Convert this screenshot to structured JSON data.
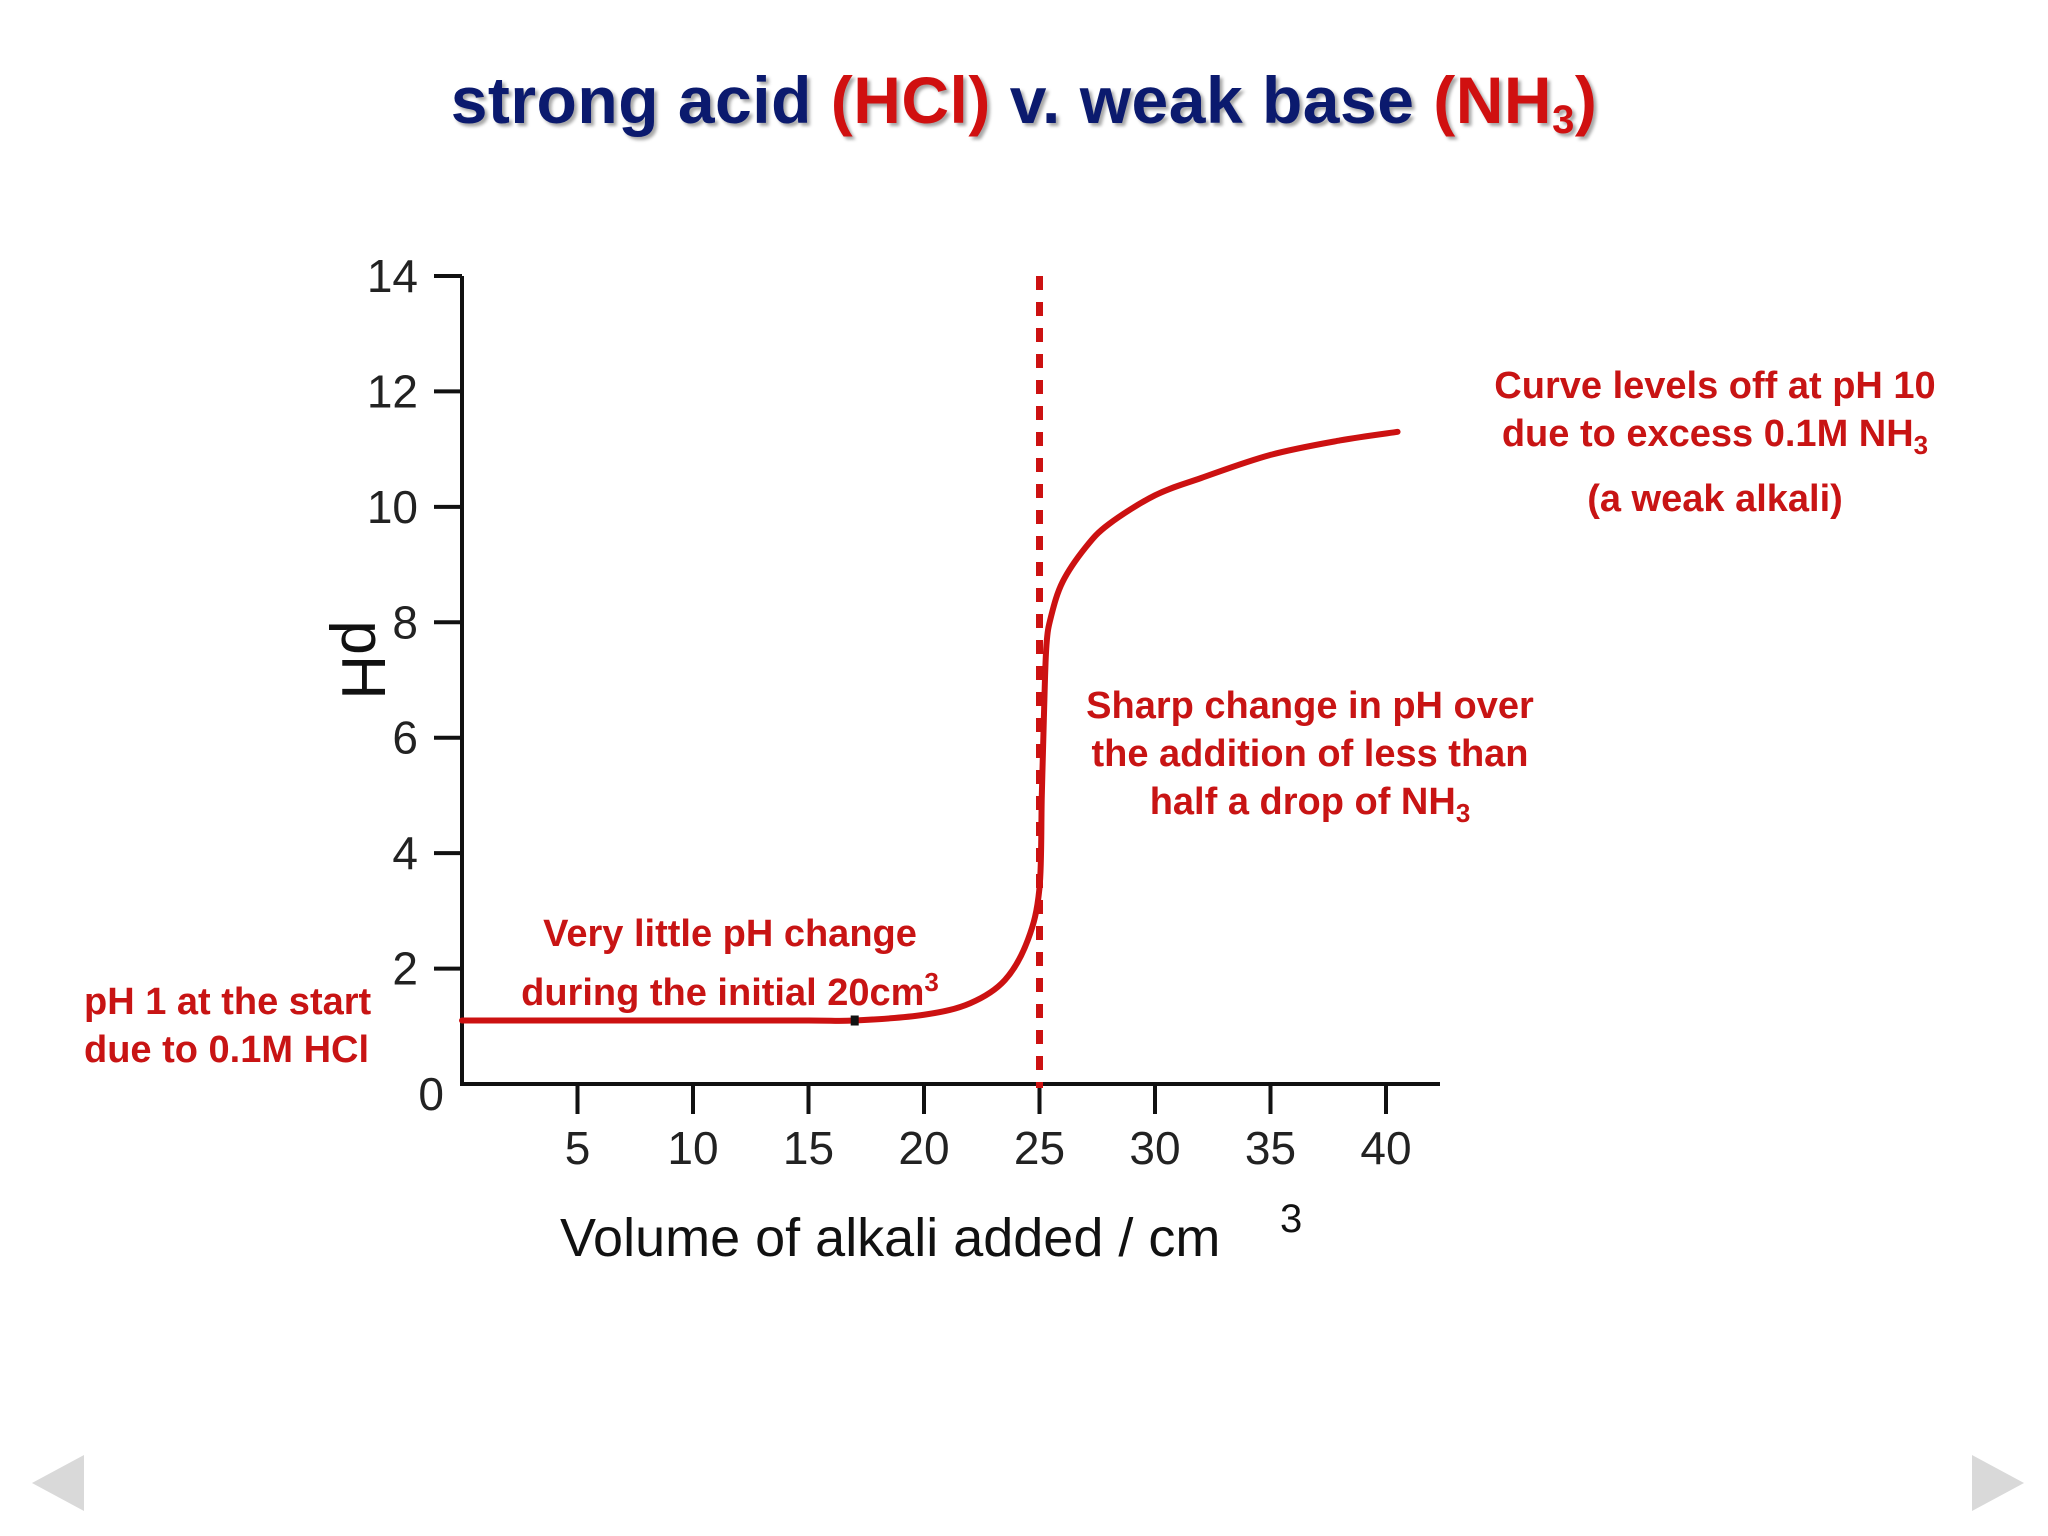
{
  "title": {
    "part1": "strong acid ",
    "acid_formula": "(HCl)",
    "part2": " v. weak base ",
    "base_formula_open": "(NH",
    "base_subscript": "3",
    "base_formula_close": ")"
  },
  "annotations": {
    "start": {
      "line1": "pH 1 at the start",
      "line2": "due to 0.1M HCl"
    },
    "initial": {
      "line1": "Very little pH change",
      "line2": "during the initial 20cm",
      "line2_sup": "3"
    },
    "sharp": {
      "line1": "Sharp change in pH over",
      "line2": "the addition of less than",
      "line3": "half a drop of NH",
      "line3_sub": "3"
    },
    "levels": {
      "line1": "Curve levels off at pH 10",
      "line2": "due to excess 0.1M NH",
      "line2_sub": "3",
      "line3": "(a weak alkali)"
    }
  },
  "colors": {
    "curve": "#cc1111",
    "axis": "#111111",
    "annotation": "#c81414",
    "title_blue": "#0b1a6e",
    "title_red": "#d01010"
  },
  "chart_data": {
    "type": "line",
    "title": "strong acid (HCl) v. weak base (NH3)",
    "xlabel": "Volume of alkali added / cm",
    "xlabel_sup": "3",
    "ylabel": "pH",
    "xlim": [
      0,
      42
    ],
    "ylim": [
      0,
      14
    ],
    "x_ticks": [
      5,
      10,
      15,
      20,
      25,
      30,
      35,
      40
    ],
    "y_ticks": [
      0,
      2,
      4,
      6,
      8,
      10,
      12,
      14
    ],
    "equivalence_line_x": 25,
    "series": [
      {
        "x": [
          0,
          5,
          10,
          15,
          17,
          20,
          22,
          23.5,
          24.5,
          25,
          25.1,
          25.2,
          25.3,
          25.5,
          26,
          27,
          28,
          30,
          32,
          35,
          38,
          40.5
        ],
        "y": [
          1.1,
          1.1,
          1.1,
          1.1,
          1.1,
          1.2,
          1.4,
          1.8,
          2.5,
          3.4,
          5.0,
          6.5,
          7.6,
          8.1,
          8.7,
          9.3,
          9.7,
          10.2,
          10.5,
          10.9,
          11.15,
          11.3
        ]
      }
    ]
  },
  "nav": {
    "prev_icon": "triangle-left-icon",
    "next_icon": "triangle-right-icon"
  }
}
